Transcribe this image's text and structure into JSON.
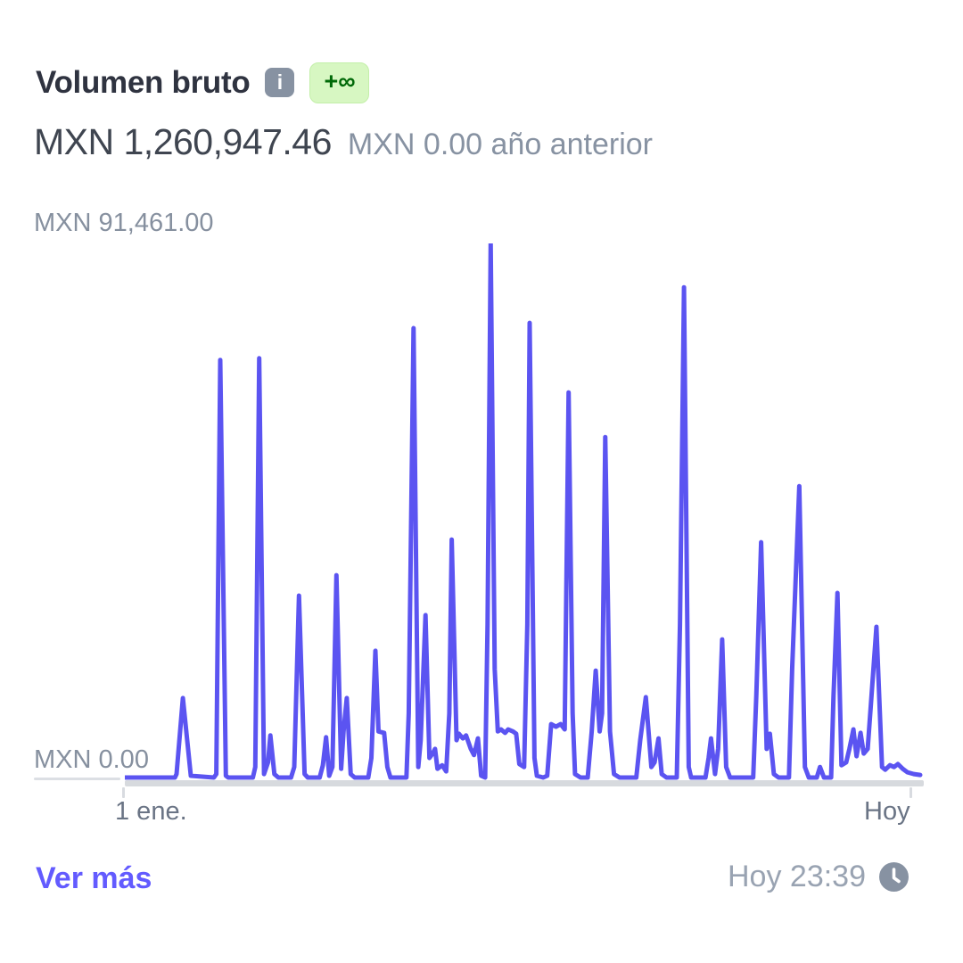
{
  "header": {
    "title": "Volumen bruto",
    "info_glyph": "i",
    "badge_label": "+∞"
  },
  "summary": {
    "current": "MXN 1,260,947.46",
    "previous": "MXN 0.00 año anterior"
  },
  "axis": {
    "y_max_label": "MXN 91,461.00",
    "y_min_label": "MXN 0.00",
    "x_start_label": "1 ene.",
    "x_end_label": "Hoy"
  },
  "footer": {
    "link_label": "Ver más",
    "updated_label": "Hoy 23:39"
  },
  "colors": {
    "line": "#5b54f1",
    "baseline_bar": "#d7dade",
    "accent": "#635bff",
    "badge_bg": "#d7f7c2",
    "badge_text": "#006908",
    "icon_gray": "#8792a2",
    "title_text": "#2f3340",
    "amount_text": "#3f4550",
    "muted_text": "#86909f"
  },
  "chart_data": {
    "type": "line",
    "title": "Volumen bruto",
    "currency": "MXN",
    "period_start": "1 ene.",
    "period_end": "Hoy",
    "total": 1260947.46,
    "previous_year_total": 0.0,
    "y_axis_min": 0,
    "y_axis_max": 91461,
    "grid": false,
    "legend": "none",
    "points_format": "[x_percent_of_period, value_mxn]",
    "points": [
      [
        0,
        0
      ],
      [
        6.3,
        0
      ],
      [
        6.5,
        600
      ],
      [
        7.3,
        13600
      ],
      [
        8.3,
        300
      ],
      [
        11.2,
        0
      ],
      [
        11.5,
        600
      ],
      [
        12,
        71500
      ],
      [
        12.7,
        300
      ],
      [
        13,
        0
      ],
      [
        16.1,
        0
      ],
      [
        16.4,
        1800
      ],
      [
        16.9,
        71800
      ],
      [
        17.5,
        600
      ],
      [
        18,
        2600
      ],
      [
        18.3,
        7200
      ],
      [
        18.8,
        600
      ],
      [
        19.3,
        0
      ],
      [
        20.9,
        0
      ],
      [
        21.3,
        1800
      ],
      [
        21.9,
        31150
      ],
      [
        22.6,
        600
      ],
      [
        23,
        0
      ],
      [
        24.5,
        0
      ],
      [
        24.9,
        2100
      ],
      [
        25.3,
        6900
      ],
      [
        25.7,
        300
      ],
      [
        26.1,
        1800
      ],
      [
        26.6,
        34650
      ],
      [
        27.2,
        1500
      ],
      [
        27.5,
        7900
      ],
      [
        27.9,
        13600
      ],
      [
        28.4,
        600
      ],
      [
        28.9,
        0
      ],
      [
        30.6,
        0
      ],
      [
        31,
        3350
      ],
      [
        31.5,
        21700
      ],
      [
        31.9,
        7900
      ],
      [
        32.6,
        7650
      ],
      [
        33,
        1800
      ],
      [
        33.4,
        0
      ],
      [
        35.4,
        0
      ],
      [
        35.7,
        11000
      ],
      [
        36.3,
        76950
      ],
      [
        36.9,
        1800
      ],
      [
        37.2,
        6400
      ],
      [
        37.8,
        27800
      ],
      [
        38.3,
        3350
      ],
      [
        38.7,
        4100
      ],
      [
        39,
        4900
      ],
      [
        39.3,
        1500
      ],
      [
        39.9,
        2100
      ],
      [
        40.4,
        1050
      ],
      [
        40.8,
        11000
      ],
      [
        41.1,
        40750
      ],
      [
        41.7,
        6400
      ],
      [
        42,
        7500
      ],
      [
        42.5,
        6700
      ],
      [
        42.9,
        7200
      ],
      [
        43.5,
        4900
      ],
      [
        43.9,
        3850
      ],
      [
        44.4,
        6700
      ],
      [
        44.8,
        300
      ],
      [
        45.3,
        0
      ],
      [
        45.6,
        26250
      ],
      [
        46,
        91461
      ],
      [
        46.5,
        18600
      ],
      [
        46.9,
        7900
      ],
      [
        47.3,
        8250
      ],
      [
        47.8,
        7650
      ],
      [
        48.2,
        8250
      ],
      [
        48.8,
        7900
      ],
      [
        49.2,
        7500
      ],
      [
        49.6,
        2300
      ],
      [
        50.2,
        1800
      ],
      [
        50.6,
        26250
      ],
      [
        50.9,
        77850
      ],
      [
        51.5,
        3350
      ],
      [
        51.8,
        300
      ],
      [
        52.6,
        0
      ],
      [
        53.1,
        300
      ],
      [
        53.6,
        9150
      ],
      [
        54.2,
        8700
      ],
      [
        54.8,
        9150
      ],
      [
        55.3,
        8250
      ],
      [
        55.8,
        65950
      ],
      [
        56.3,
        11000
      ],
      [
        56.6,
        600
      ],
      [
        57.3,
        0
      ],
      [
        58.2,
        0
      ],
      [
        58.7,
        7900
      ],
      [
        59.2,
        18300
      ],
      [
        59.7,
        7900
      ],
      [
        60,
        11000
      ],
      [
        60.4,
        58300
      ],
      [
        61,
        7900
      ],
      [
        61.5,
        600
      ],
      [
        62.2,
        0
      ],
      [
        64.3,
        0
      ],
      [
        64.8,
        6400
      ],
      [
        65.5,
        13750
      ],
      [
        66.2,
        1800
      ],
      [
        66.6,
        2600
      ],
      [
        67.1,
        6700
      ],
      [
        67.5,
        600
      ],
      [
        68.1,
        0
      ],
      [
        69.4,
        0
      ],
      [
        69.8,
        26250
      ],
      [
        70.3,
        83950
      ],
      [
        70.9,
        1800
      ],
      [
        71.2,
        0
      ],
      [
        73,
        0
      ],
      [
        73.4,
        3350
      ],
      [
        73.7,
        6700
      ],
      [
        74.2,
        600
      ],
      [
        74.6,
        4900
      ],
      [
        75.1,
        23650
      ],
      [
        75.6,
        1800
      ],
      [
        76.1,
        0
      ],
      [
        79,
        0
      ],
      [
        79.4,
        14050
      ],
      [
        80,
        40300
      ],
      [
        80.7,
        4900
      ],
      [
        81.1,
        7500
      ],
      [
        81.6,
        600
      ],
      [
        82.2,
        0
      ],
      [
        83.5,
        0
      ],
      [
        83.9,
        18600
      ],
      [
        84.8,
        49900
      ],
      [
        85.5,
        1800
      ],
      [
        86,
        0
      ],
      [
        87,
        0
      ],
      [
        87.4,
        1800
      ],
      [
        87.9,
        0
      ],
      [
        88.8,
        0
      ],
      [
        89.1,
        14050
      ],
      [
        89.6,
        31600
      ],
      [
        90.1,
        2100
      ],
      [
        90.7,
        2600
      ],
      [
        91.1,
        4900
      ],
      [
        91.6,
        8250
      ],
      [
        92,
        3650
      ],
      [
        92.5,
        7650
      ],
      [
        92.9,
        4100
      ],
      [
        93.4,
        4900
      ],
      [
        93.8,
        12500
      ],
      [
        94.5,
        25800
      ],
      [
        95.2,
        1800
      ],
      [
        95.6,
        1350
      ],
      [
        96.2,
        2100
      ],
      [
        96.7,
        1800
      ],
      [
        97.2,
        2300
      ],
      [
        97.8,
        1500
      ],
      [
        98.4,
        900
      ],
      [
        99.2,
        600
      ],
      [
        100,
        450
      ]
    ]
  }
}
